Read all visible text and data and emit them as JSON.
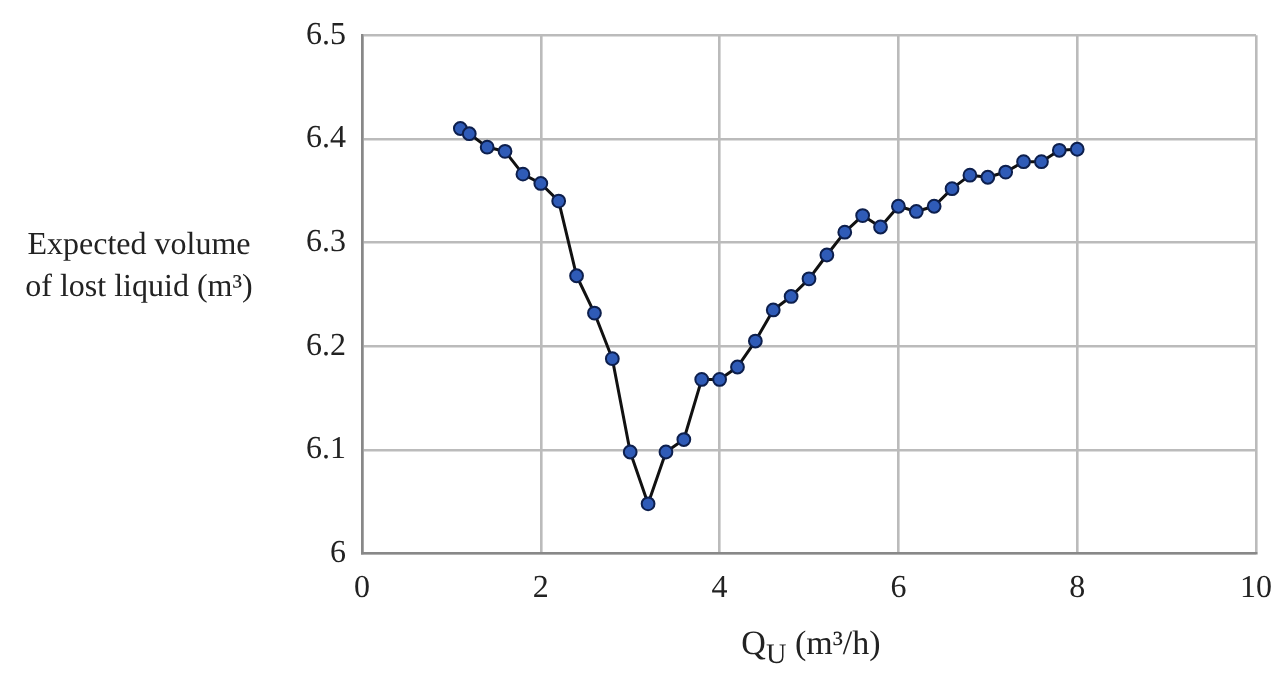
{
  "chart_data": {
    "type": "line",
    "xlabel": "Q$_{U}$ (m³/h)",
    "ylabel": "Expected volume of lost liquid (m³)",
    "x": [
      1.1,
      1.2,
      1.4,
      1.6,
      1.8,
      2.0,
      2.2,
      2.4,
      2.6,
      2.8,
      3.0,
      3.2,
      3.4,
      3.6,
      3.8,
      4.0,
      4.2,
      4.4,
      4.6,
      4.8,
      5.0,
      5.2,
      5.4,
      5.6,
      5.8,
      6.0,
      6.2,
      6.4,
      6.6,
      6.8,
      7.0,
      7.2,
      7.4,
      7.6,
      7.8,
      8.0
    ],
    "series": [
      {
        "color": "#2f5bb7",
        "values": [
          6.41,
          6.405,
          6.392,
          6.388,
          6.366,
          6.357,
          6.34,
          6.268,
          6.232,
          6.188,
          6.098,
          6.048,
          6.098,
          6.11,
          6.168,
          6.168,
          6.18,
          6.205,
          6.235,
          6.248,
          6.265,
          6.288,
          6.31,
          6.326,
          6.315,
          6.335,
          6.33,
          6.335,
          6.352,
          6.365,
          6.363,
          6.368,
          6.378,
          6.378,
          6.389,
          6.39
        ]
      }
    ],
    "xlim": [
      0,
      10
    ],
    "xticks": [
      0,
      2,
      4,
      6,
      8,
      10
    ],
    "ylim": [
      6,
      6.5
    ],
    "yticks": [
      6,
      6.1,
      6.2,
      6.3,
      6.4,
      6.5
    ],
    "grid": true,
    "marker": "circle",
    "line_style": "solid",
    "legend": false
  }
}
